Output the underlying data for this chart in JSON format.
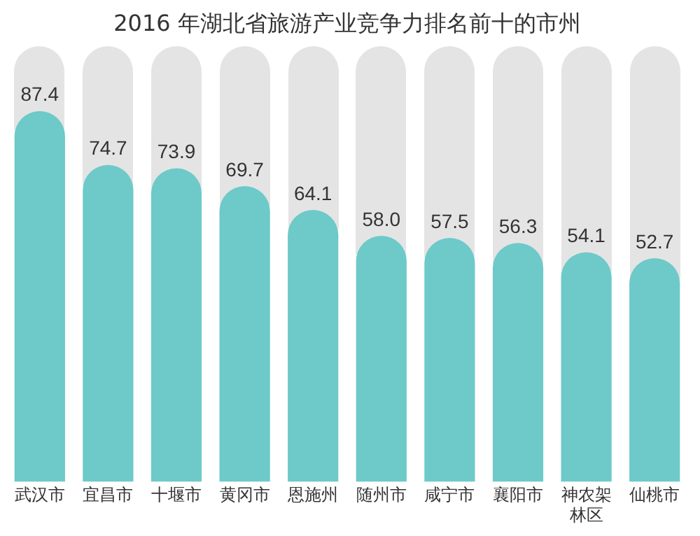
{
  "chart_data": {
    "type": "bar",
    "title": "2016 年湖北省旅游产业竞争力排名前十的市州",
    "categories": [
      "武汉市",
      "宜昌市",
      "十堰市",
      "黄冈市",
      "恩施州",
      "随州市",
      "咸宁市",
      "襄阳市",
      "神农架林区",
      "仙桃市"
    ],
    "series": [
      {
        "color": "#6ec9c9",
        "values": [
          87.4,
          74.7,
          73.9,
          69.7,
          64.1,
          58.0,
          57.5,
          56.3,
          54.1,
          52.7
        ],
        "value_labels": [
          "87.4",
          "74.7",
          "73.9",
          "69.7",
          "64.1",
          "58.0",
          "57.5",
          "56.3",
          "54.1",
          "52.7"
        ]
      }
    ],
    "grid": false,
    "legend": false
  }
}
